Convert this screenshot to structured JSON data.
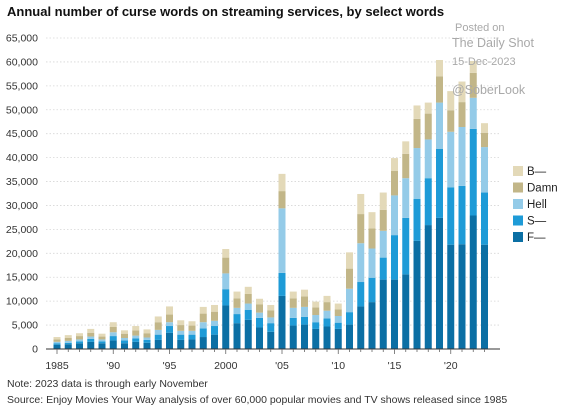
{
  "title": "Annual number of curse words on streaming services, by select words",
  "watermark": {
    "line1": "Posted on",
    "line2": "The Daily Shot",
    "line3": "15-Dec-2023",
    "line4": "@SoberLook"
  },
  "notes": {
    "note": "Note: 2023 data is through early November",
    "source": "Source: Enjoy Movies Your Way analysis of over 60,000 popular movies and TV shows released since 1985"
  },
  "colors": {
    "F": "#0b6fa4",
    "S": "#1e9bd7",
    "Hell": "#94cbe8",
    "Damn": "#c2b688",
    "B": "#e3d9b8",
    "grid": "#d6d6d6",
    "axis": "#666666"
  },
  "chart_data": {
    "type": "bar",
    "stacked": true,
    "x": [
      1985,
      1986,
      1987,
      1988,
      1989,
      1990,
      1991,
      1992,
      1993,
      1994,
      1995,
      1996,
      1997,
      1998,
      1999,
      2000,
      2001,
      2002,
      2003,
      2004,
      2005,
      2006,
      2007,
      2008,
      2009,
      2010,
      2011,
      2012,
      2013,
      2014,
      2015,
      2016,
      2017,
      2018,
      2019,
      2020,
      2021,
      2022,
      2023
    ],
    "x_tick_labels": [
      {
        "x": 1985,
        "label": "1985"
      },
      {
        "x": 1990,
        "label": "'90"
      },
      {
        "x": 1995,
        "label": "'95"
      },
      {
        "x": 2000,
        "label": "2000"
      },
      {
        "x": 2005,
        "label": "'05"
      },
      {
        "x": 2010,
        "label": "'10"
      },
      {
        "x": 2015,
        "label": "'15"
      },
      {
        "x": 2020,
        "label": "'20"
      }
    ],
    "y_ticks": [
      0,
      5000,
      10000,
      15000,
      20000,
      25000,
      30000,
      35000,
      40000,
      45000,
      50000,
      55000,
      60000,
      65000
    ],
    "y_tick_labels": [
      "0",
      "5,000",
      "10,000",
      "15,000",
      "20,000",
      "25,000",
      "30,000",
      "35,000",
      "40,000",
      "45,000",
      "50,000",
      "55,000",
      "60,000",
      "65,000"
    ],
    "ylim": [
      0,
      65000
    ],
    "grid": true,
    "legend_position": "right",
    "series": [
      {
        "key": "F",
        "name": "F—",
        "values": [
          900,
          1000,
          1200,
          1500,
          1200,
          1800,
          1200,
          1500,
          1300,
          1900,
          3400,
          1900,
          2000,
          2500,
          3000,
          9100,
          5400,
          6100,
          4500,
          3600,
          11100,
          4900,
          5100,
          4200,
          4700,
          4200,
          5100,
          8900,
          9800,
          14500,
          14500,
          15600,
          22600,
          25900,
          27400,
          21800,
          21900,
          27900,
          21800
        ]
      },
      {
        "key": "S",
        "name": "S—",
        "values": [
          300,
          300,
          400,
          600,
          400,
          900,
          600,
          700,
          600,
          1100,
          1400,
          1100,
          1000,
          1800,
          1800,
          3400,
          1900,
          2100,
          2000,
          1800,
          4800,
          1600,
          1600,
          1400,
          1700,
          1300,
          2600,
          5100,
          5100,
          4600,
          9300,
          11800,
          8800,
          9800,
          14400,
          12000,
          12200,
          18100,
          10900
        ]
      },
      {
        "key": "Hell",
        "name": "Hell",
        "values": [
          300,
          400,
          400,
          500,
          400,
          800,
          500,
          600,
          500,
          1000,
          800,
          800,
          800,
          1300,
          1100,
          3300,
          1300,
          1300,
          1100,
          1200,
          13500,
          2100,
          2100,
          1500,
          1600,
          1400,
          4900,
          8100,
          6100,
          5600,
          8300,
          8300,
          10600,
          8100,
          9700,
          11600,
          12300,
          6500,
          9500
        ]
      },
      {
        "key": "Damn",
        "name": "Damn",
        "values": [
          500,
          600,
          700,
          800,
          600,
          1100,
          900,
          1100,
          900,
          1600,
          1600,
          1200,
          1100,
          1800,
          1900,
          3300,
          2000,
          2000,
          1700,
          1500,
          3600,
          2000,
          2200,
          1600,
          1800,
          1400,
          4200,
          6100,
          4200,
          4400,
          5100,
          5100,
          6100,
          5400,
          5500,
          4500,
          5200,
          5200,
          3000
        ]
      },
      {
        "key": "B",
        "name": "B—",
        "values": [
          500,
          600,
          600,
          800,
          600,
          1000,
          700,
          900,
          800,
          1200,
          1700,
          1000,
          900,
          1400,
          1400,
          1800,
          1400,
          1500,
          1200,
          1100,
          3600,
          1400,
          1400,
          1200,
          1300,
          1200,
          3400,
          4200,
          3400,
          3600,
          2700,
          2600,
          2800,
          2300,
          3400,
          4000,
          4300,
          2500,
          2000
        ]
      }
    ]
  }
}
